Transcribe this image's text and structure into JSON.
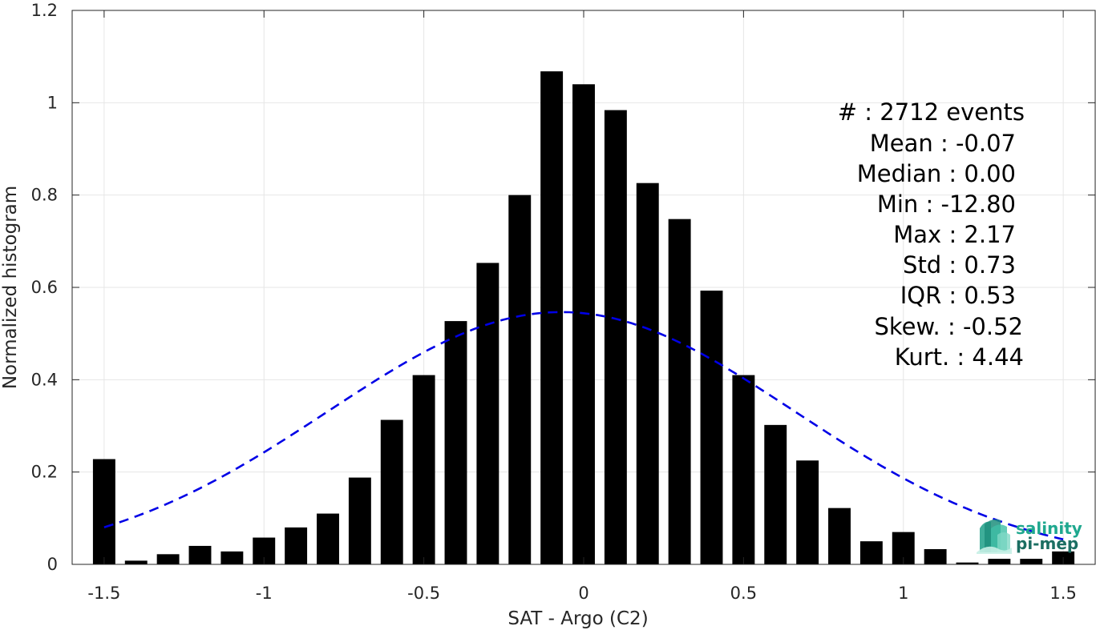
{
  "chart_data": {
    "type": "bar",
    "title": "",
    "xlabel": "SAT - Argo (C2)",
    "ylabel": "Normalized histogram",
    "xlim": [
      -1.6,
      1.6
    ],
    "ylim": [
      0,
      1.2
    ],
    "xticks": [
      -1.5,
      -1,
      -0.5,
      0,
      0.5,
      1,
      1.5
    ],
    "xtick_labels": [
      "-1.5",
      "-1",
      "-0.5",
      "0",
      "0.5",
      "1",
      "1.5"
    ],
    "yticks": [
      0,
      0.2,
      0.4,
      0.6,
      0.8,
      1,
      1.2
    ],
    "ytick_labels": [
      "0",
      "0.2",
      "0.4",
      "0.6",
      "0.8",
      "1",
      "1.2"
    ],
    "grid": true,
    "bar_color": "#000000",
    "bar_width": 0.07,
    "x": [
      -1.5,
      -1.4,
      -1.3,
      -1.2,
      -1.1,
      -1.0,
      -0.9,
      -0.8,
      -0.7,
      -0.6,
      -0.5,
      -0.4,
      -0.3,
      -0.2,
      -0.1,
      0.0,
      0.1,
      0.2,
      0.3,
      0.4,
      0.5,
      0.6,
      0.7,
      0.8,
      0.9,
      1.0,
      1.1,
      1.2,
      1.3,
      1.4,
      1.5
    ],
    "values": [
      0.228,
      0.008,
      0.022,
      0.04,
      0.028,
      0.058,
      0.08,
      0.11,
      0.188,
      0.313,
      0.41,
      0.527,
      0.653,
      0.8,
      1.068,
      1.04,
      0.984,
      0.826,
      0.748,
      0.593,
      0.41,
      0.302,
      0.225,
      0.122,
      0.05,
      0.07,
      0.033,
      0.004,
      0.012,
      0.012,
      0.028
    ],
    "fit": {
      "name": "Gaussian fit",
      "mean": -0.07,
      "std": 0.73,
      "x_range": [
        -1.5,
        1.5
      ],
      "color": "#0000e6",
      "style": "dashed"
    },
    "annotations": [
      "#  : 2712 events",
      "Mean : -0.07",
      "Median : 0.00",
      "Min : -12.80",
      "Max : 2.17",
      "Std : 0.73",
      "IQR : 0.53",
      "Skew. : -0.52",
      "Kurt. : 4.44"
    ]
  },
  "logo": {
    "line1": "salinity",
    "line2": "pi-mep",
    "color1": "#1fa88f",
    "color2": "#1b6e62"
  }
}
